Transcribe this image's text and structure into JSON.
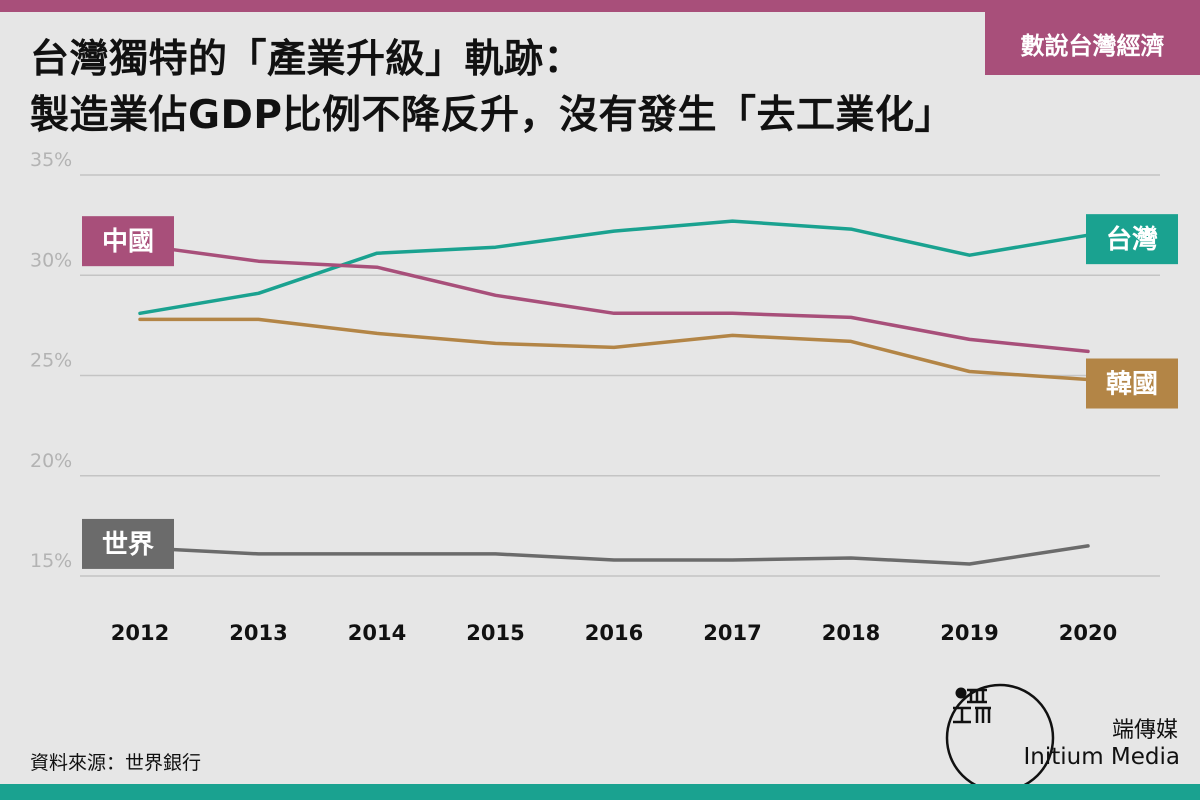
{
  "header": {
    "title_line1": "台灣獨特的「產業升級」軌跡：",
    "title_line2": "製造業佔GDP比例不降反升，沒有發生「去工業化」",
    "series_badge": "數說台灣經濟"
  },
  "colors": {
    "accent_top": "#a84f7a",
    "accent_bottom": "#1aa290",
    "grid": "#c4c4c4",
    "background": "#e6e6e6"
  },
  "footer": {
    "source": "資料來源：世界銀行",
    "brand_zh": "端傳媒",
    "brand_en": "Initium Media",
    "logo_icon": "initium-logo-icon"
  },
  "chart_data": {
    "type": "line",
    "title": "",
    "xlabel": "",
    "ylabel": "",
    "x": [
      "2012",
      "2013",
      "2014",
      "2015",
      "2016",
      "2017",
      "2018",
      "2019",
      "2020"
    ],
    "ylim": [
      15,
      35
    ],
    "yticks": [
      "15%",
      "20%",
      "25%",
      "30%",
      "35%"
    ],
    "grid": true,
    "legend": "inline labels at line ends",
    "series": [
      {
        "name": "台灣",
        "color": "#1aa290",
        "label_at": "end",
        "values": [
          28.1,
          29.1,
          31.1,
          31.4,
          32.2,
          32.7,
          32.3,
          31.0,
          32.0
        ]
      },
      {
        "name": "中國",
        "color": "#a84f7a",
        "label_at": "start",
        "values": [
          31.5,
          30.7,
          30.4,
          29.0,
          28.1,
          28.1,
          27.9,
          26.8,
          26.2
        ]
      },
      {
        "name": "韓國",
        "color": "#b38546",
        "label_at": "end",
        "values": [
          27.8,
          27.8,
          27.1,
          26.6,
          26.4,
          27.0,
          26.7,
          25.2,
          24.8
        ]
      },
      {
        "name": "世界",
        "color": "#6b6b6b",
        "label_at": "start",
        "values": [
          16.4,
          16.1,
          16.1,
          16.1,
          15.8,
          15.8,
          15.9,
          15.6,
          16.5
        ]
      }
    ]
  }
}
